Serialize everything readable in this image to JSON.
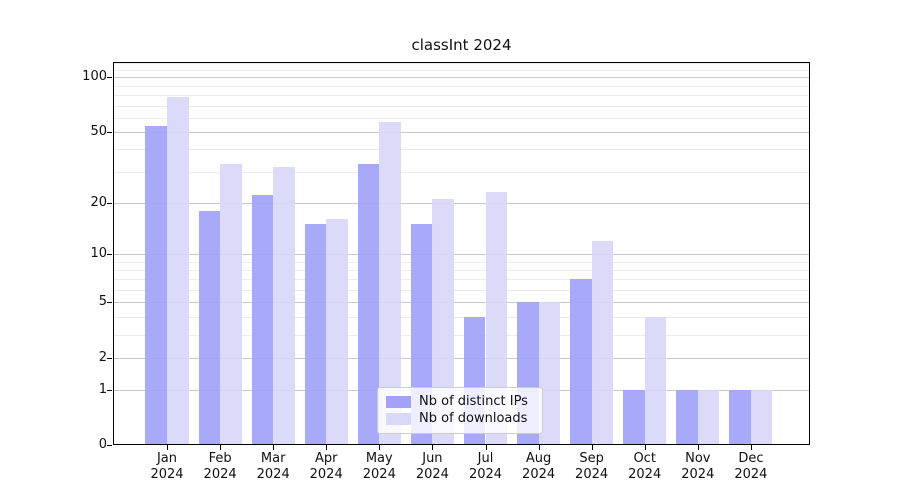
{
  "title": "classInt 2024",
  "colors": {
    "distinct_ips": "#a2a2f9",
    "downloads": "#d8d8f9",
    "grid_major": "#c9c9c9",
    "grid_minor": "#ececec",
    "axis_frame": "#000000",
    "legend_border": "#cccccc"
  },
  "chart_data": {
    "type": "bar",
    "title": "classInt 2024",
    "categories": [
      "Jan",
      "Feb",
      "Mar",
      "Apr",
      "May",
      "Jun",
      "Jul",
      "Aug",
      "Sep",
      "Oct",
      "Nov",
      "Dec"
    ],
    "year": "2024",
    "series": [
      {
        "name": "Nb of distinct IPs",
        "color": "#a2a2f9",
        "values": [
          54,
          18,
          22,
          15,
          33,
          15,
          4,
          5,
          7,
          1,
          1,
          1
        ]
      },
      {
        "name": "Nb of downloads",
        "color": "#d8d8f9",
        "values": [
          78,
          33,
          32,
          16,
          57,
          21,
          23,
          5,
          12,
          4,
          1,
          1
        ]
      }
    ],
    "yscale": "log1p",
    "ylim": [
      0,
      121
    ],
    "yticks": [
      0,
      1,
      2,
      5,
      10,
      20,
      50,
      100
    ],
    "yticklabels": [
      "0",
      "1",
      "2",
      "5",
      "10",
      "20",
      "50",
      "100"
    ],
    "minor_yticks": [
      3,
      4,
      6,
      7,
      8,
      9,
      30,
      40,
      60,
      70,
      80,
      90,
      110,
      120
    ],
    "grid": true,
    "legend_position": "lower center",
    "xlabel": "",
    "ylabel": ""
  }
}
